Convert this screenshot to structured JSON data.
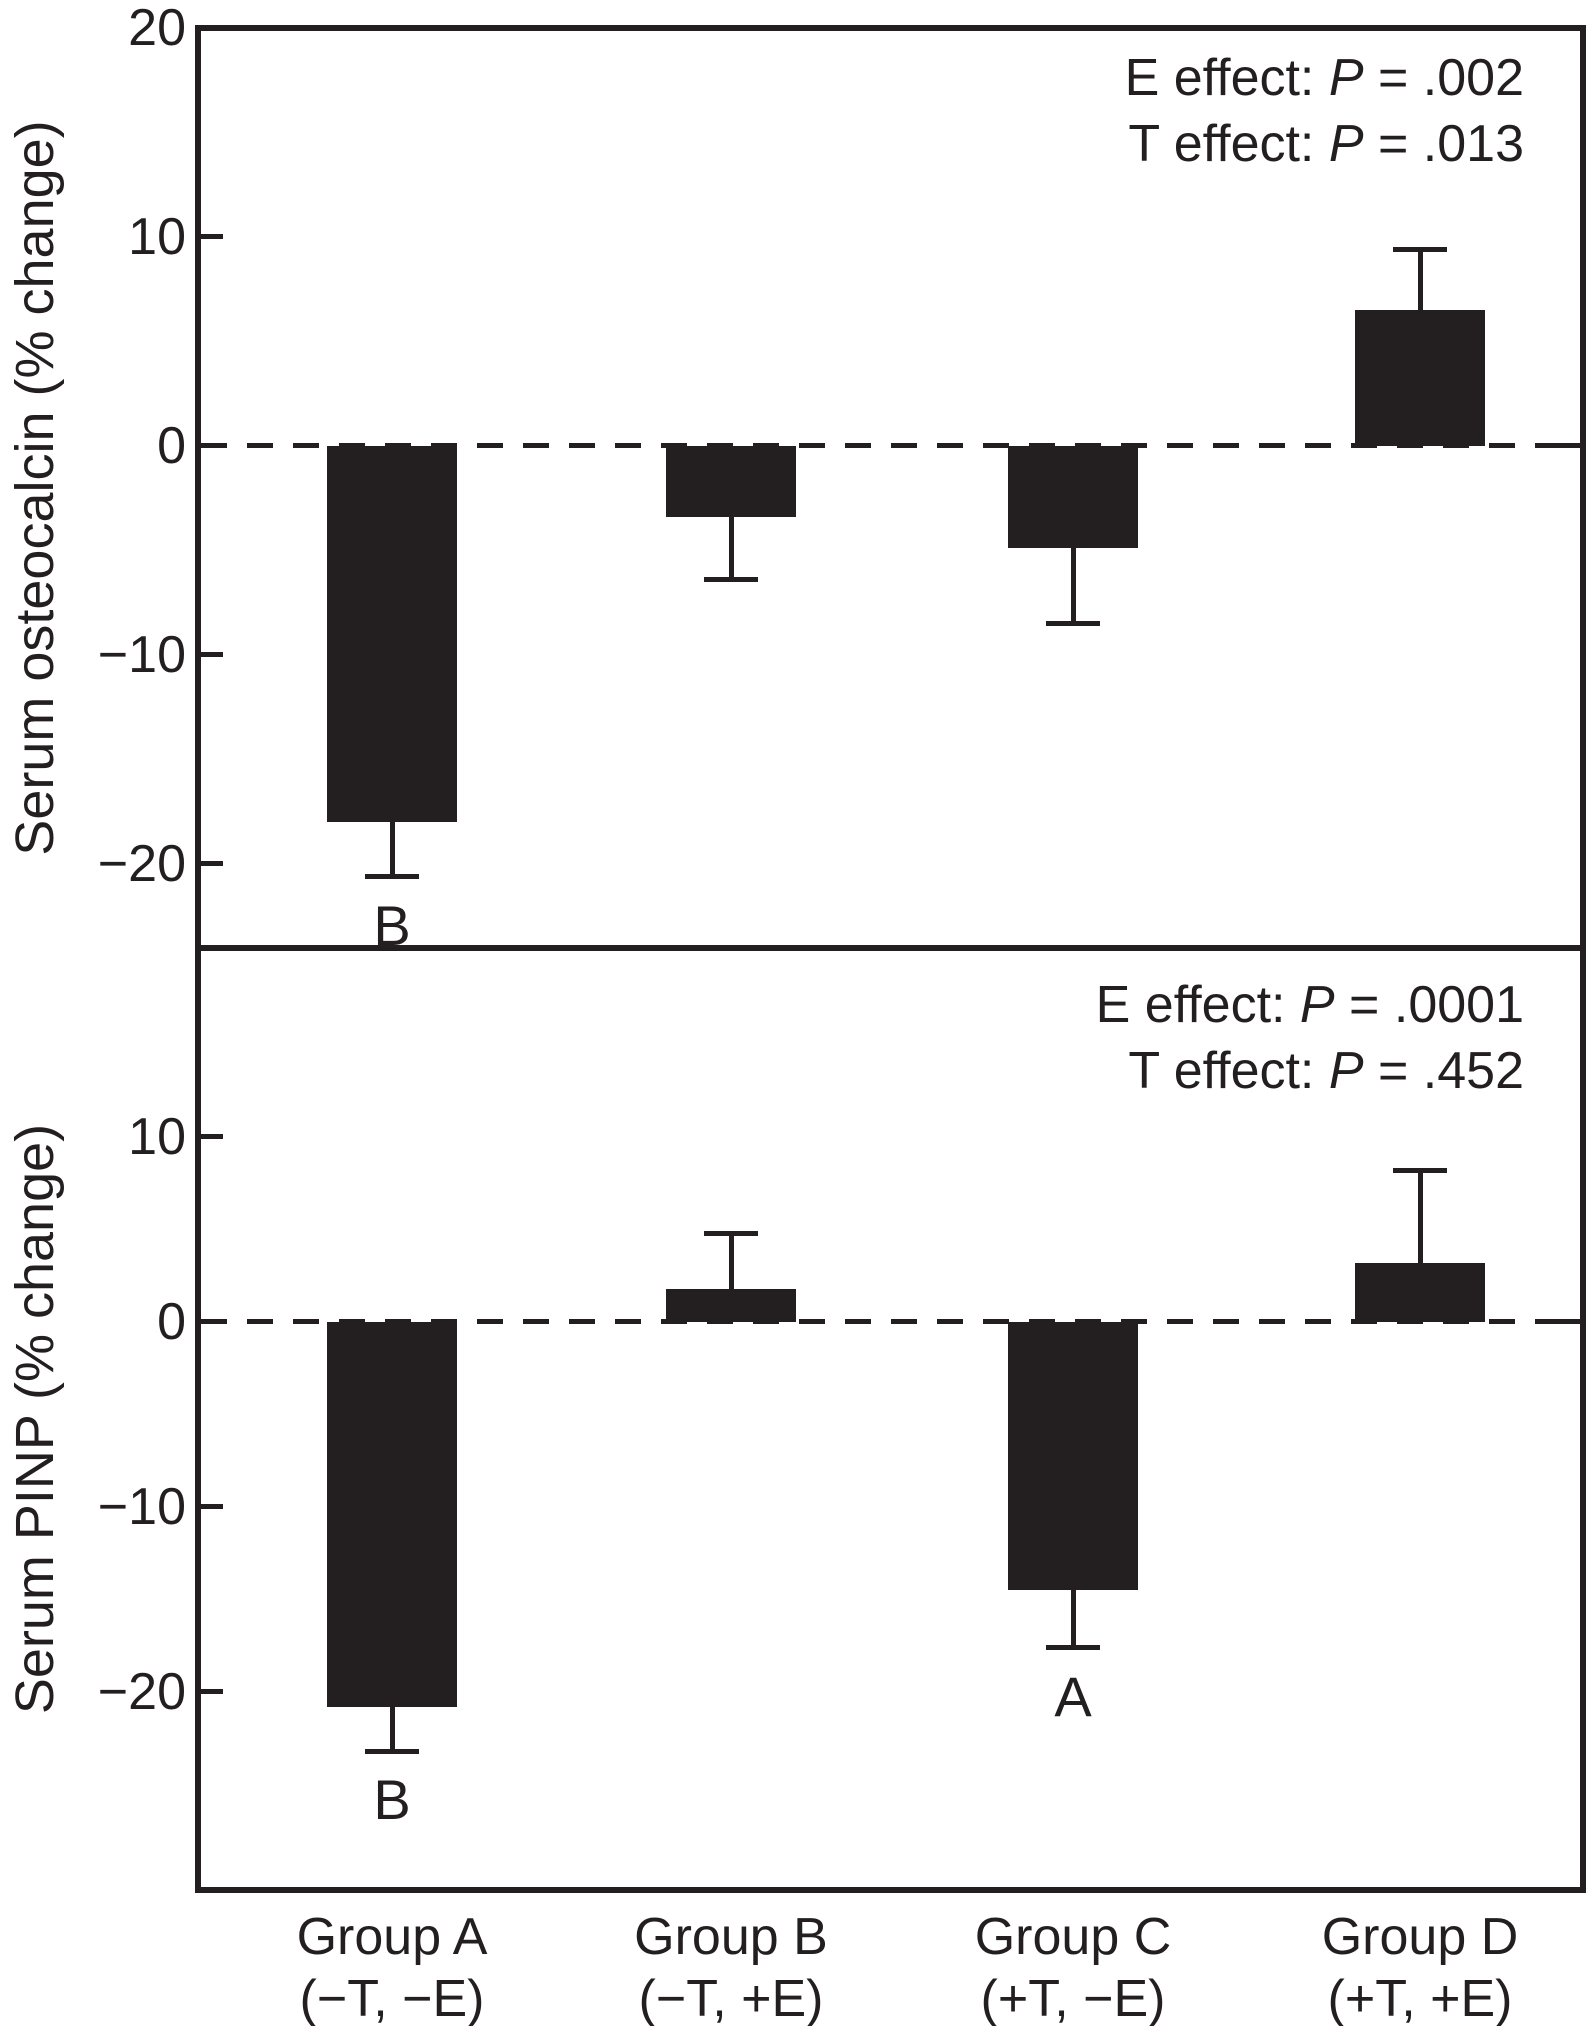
{
  "colors": {
    "bar": "#231f20",
    "axis": "#231f20",
    "background": "#ffffff"
  },
  "groups": [
    {
      "name": "Group A",
      "condition": "(−T, −E)"
    },
    {
      "name": "Group B",
      "condition": "(−T, +E)"
    },
    {
      "name": "Group C",
      "condition": "(+T, −E)"
    },
    {
      "name": "Group D",
      "condition": "(+T, +E)"
    }
  ],
  "chart_data": [
    {
      "type": "bar",
      "panel": "top",
      "ylabel": "Serum osteocalcin (% change)",
      "categories": [
        "Group A (−T, −E)",
        "Group B (−T, +E)",
        "Group C (+T, −E)",
        "Group D (+T, +E)"
      ],
      "values": [
        -18.0,
        -3.4,
        -4.9,
        6.5
      ],
      "errors": [
        2.6,
        3.0,
        3.6,
        2.9
      ],
      "error_style": "one-sided whiskers pointing away from zero",
      "sig_labels": [
        "B",
        "",
        "",
        ""
      ],
      "yticks": [
        20,
        10,
        0,
        -10,
        -20
      ],
      "ylim": [
        -24,
        20
      ],
      "zero_line": "dashed",
      "grid": false,
      "annotations": [
        {
          "before": "E effect: ",
          "p": "P",
          "after": " = .002"
        },
        {
          "before": "T effect: ",
          "p": "P",
          "after": " = .013"
        }
      ]
    },
    {
      "type": "bar",
      "panel": "bottom",
      "ylabel": "Serum PINP (% change)",
      "categories": [
        "Group A (−T, −E)",
        "Group B (−T, +E)",
        "Group C (+T, −E)",
        "Group D (+T, +E)"
      ],
      "values": [
        -20.8,
        1.8,
        -14.5,
        3.2
      ],
      "errors": [
        2.4,
        3.0,
        3.1,
        5.0
      ],
      "error_style": "one-sided whiskers pointing away from zero",
      "sig_labels": [
        "B",
        "",
        "A",
        ""
      ],
      "yticks": [
        10,
        0,
        -10,
        -20
      ],
      "ylim": [
        -30.7,
        20.2
      ],
      "zero_line": "dashed",
      "grid": false,
      "annotations": [
        {
          "before": "E effect: ",
          "p": "P",
          "after": " = .0001"
        },
        {
          "before": "T effect: ",
          "p": "P",
          "after": " = .452"
        }
      ]
    }
  ]
}
